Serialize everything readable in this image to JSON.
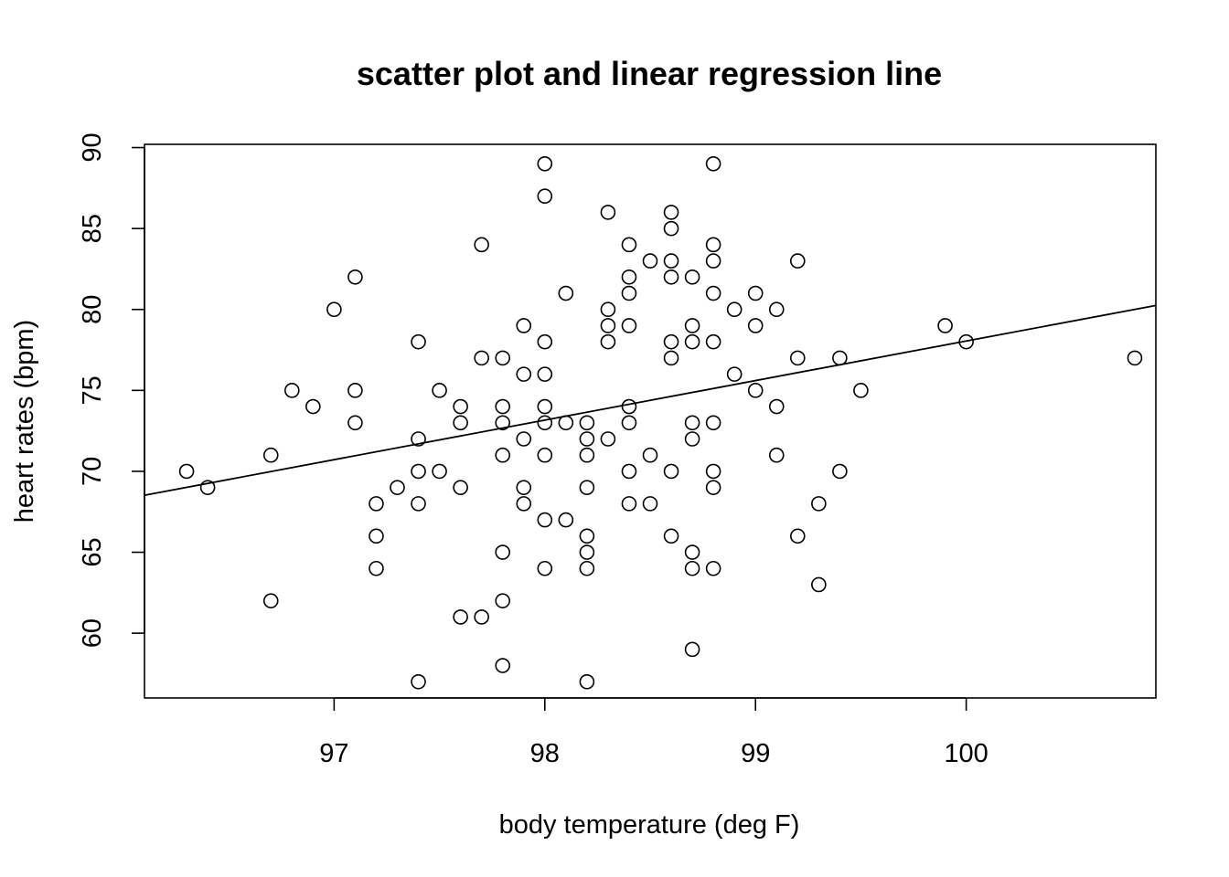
{
  "chart_data": {
    "type": "scatter",
    "title": "scatter plot and linear regression line",
    "xlabel": "body temperature (deg F)",
    "ylabel": "heart rates (bpm)",
    "xlim": [
      96.1,
      100.9
    ],
    "ylim": [
      56,
      90.2
    ],
    "x_ticks": [
      97,
      98,
      99,
      100
    ],
    "y_ticks": [
      60,
      65,
      70,
      75,
      80,
      85,
      90
    ],
    "grid": false,
    "legend": "none",
    "regression_line": {
      "intercept": -166.3,
      "slope": 2.4435
    },
    "points": [
      [
        96.3,
        70
      ],
      [
        96.4,
        69
      ],
      [
        96.7,
        71
      ],
      [
        96.7,
        62
      ],
      [
        96.8,
        75
      ],
      [
        96.9,
        74
      ],
      [
        97.0,
        80
      ],
      [
        97.1,
        82
      ],
      [
        97.1,
        75
      ],
      [
        97.1,
        73
      ],
      [
        97.2,
        68
      ],
      [
        97.2,
        66
      ],
      [
        97.2,
        64
      ],
      [
        97.3,
        69
      ],
      [
        97.4,
        78
      ],
      [
        97.4,
        72
      ],
      [
        97.4,
        70
      ],
      [
        97.4,
        68
      ],
      [
        97.4,
        57
      ],
      [
        97.5,
        75
      ],
      [
        97.5,
        70
      ],
      [
        97.6,
        74
      ],
      [
        97.6,
        73
      ],
      [
        97.6,
        69
      ],
      [
        97.6,
        61
      ],
      [
        97.7,
        84
      ],
      [
        97.7,
        77
      ],
      [
        97.7,
        61
      ],
      [
        97.8,
        77
      ],
      [
        97.8,
        74
      ],
      [
        97.8,
        73
      ],
      [
        97.8,
        71
      ],
      [
        97.8,
        65
      ],
      [
        97.8,
        62
      ],
      [
        97.8,
        58
      ],
      [
        97.9,
        79
      ],
      [
        97.9,
        76
      ],
      [
        97.9,
        72
      ],
      [
        97.9,
        69
      ],
      [
        97.9,
        68
      ],
      [
        98.0,
        89
      ],
      [
        98.0,
        87
      ],
      [
        98.0,
        78
      ],
      [
        98.0,
        76
      ],
      [
        98.0,
        74
      ],
      [
        98.0,
        73
      ],
      [
        98.0,
        71
      ],
      [
        98.0,
        67
      ],
      [
        98.0,
        64
      ],
      [
        98.1,
        81
      ],
      [
        98.1,
        73
      ],
      [
        98.1,
        67
      ],
      [
        98.2,
        73
      ],
      [
        98.2,
        72
      ],
      [
        98.2,
        71
      ],
      [
        98.2,
        69
      ],
      [
        98.2,
        66
      ],
      [
        98.2,
        65
      ],
      [
        98.2,
        64
      ],
      [
        98.2,
        57
      ],
      [
        98.3,
        86
      ],
      [
        98.3,
        80
      ],
      [
        98.3,
        79
      ],
      [
        98.3,
        78
      ],
      [
        98.3,
        72
      ],
      [
        98.4,
        84
      ],
      [
        98.4,
        82
      ],
      [
        98.4,
        81
      ],
      [
        98.4,
        79
      ],
      [
        98.4,
        74
      ],
      [
        98.4,
        73
      ],
      [
        98.4,
        70
      ],
      [
        98.4,
        68
      ],
      [
        98.5,
        83
      ],
      [
        98.5,
        71
      ],
      [
        98.5,
        68
      ],
      [
        98.6,
        86
      ],
      [
        98.6,
        85
      ],
      [
        98.6,
        83
      ],
      [
        98.6,
        82
      ],
      [
        98.6,
        78
      ],
      [
        98.6,
        77
      ],
      [
        98.6,
        70
      ],
      [
        98.6,
        66
      ],
      [
        98.7,
        82
      ],
      [
        98.7,
        79
      ],
      [
        98.7,
        78
      ],
      [
        98.7,
        73
      ],
      [
        98.7,
        72
      ],
      [
        98.7,
        65
      ],
      [
        98.7,
        64
      ],
      [
        98.7,
        59
      ],
      [
        98.8,
        89
      ],
      [
        98.8,
        84
      ],
      [
        98.8,
        83
      ],
      [
        98.8,
        81
      ],
      [
        98.8,
        78
      ],
      [
        98.8,
        73
      ],
      [
        98.8,
        70
      ],
      [
        98.8,
        69
      ],
      [
        98.8,
        64
      ],
      [
        98.9,
        80
      ],
      [
        98.9,
        76
      ],
      [
        99.0,
        81
      ],
      [
        99.0,
        79
      ],
      [
        99.0,
        75
      ],
      [
        99.1,
        80
      ],
      [
        99.1,
        74
      ],
      [
        99.1,
        71
      ],
      [
        99.2,
        83
      ],
      [
        99.2,
        77
      ],
      [
        99.2,
        66
      ],
      [
        99.3,
        68
      ],
      [
        99.3,
        63
      ],
      [
        99.4,
        77
      ],
      [
        99.4,
        70
      ],
      [
        99.5,
        75
      ],
      [
        99.9,
        79
      ],
      [
        100.0,
        78
      ],
      [
        100.8,
        77
      ]
    ]
  }
}
